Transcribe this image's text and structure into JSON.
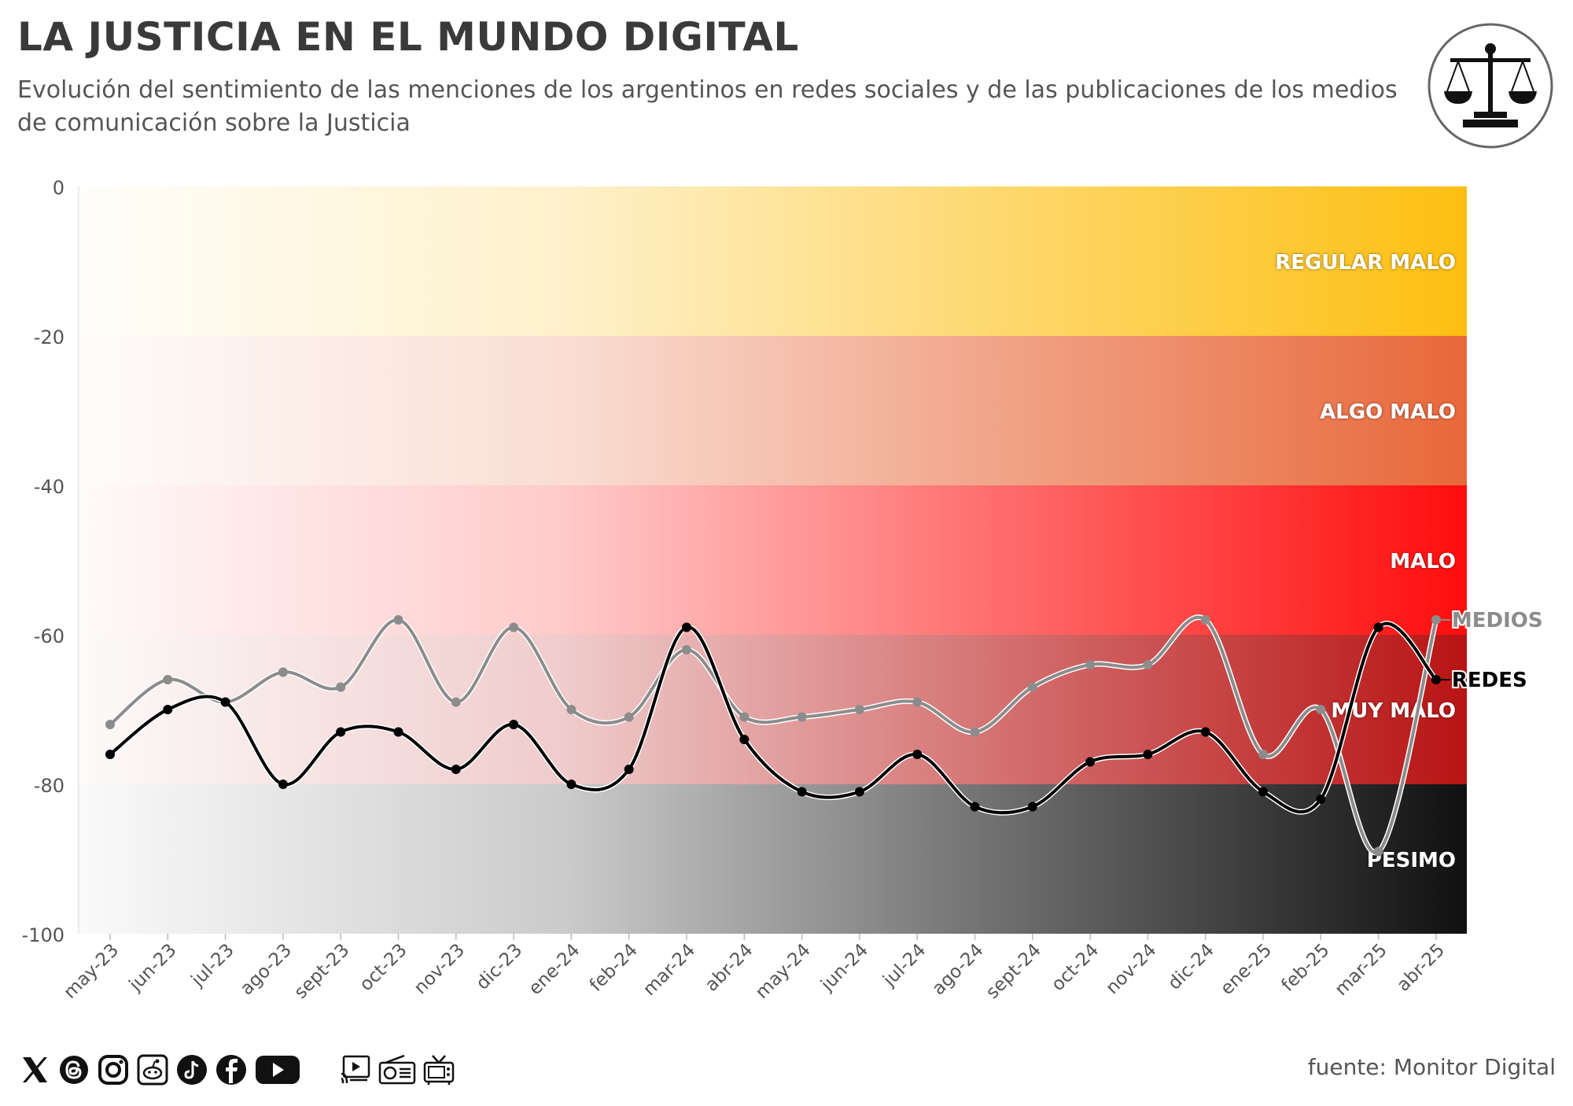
{
  "title": "LA JUSTICIA EN EL MUNDO DIGITAL",
  "subtitle": "Evolución del sentimiento de las menciones de los argentinos en redes sociales y de las publicaciones de los medios de comunicación sobre la Justicia",
  "source": "fuente: Monitor Digital",
  "icons": {
    "logo": "scales-of-justice-icon",
    "social": [
      "x-icon",
      "threads-icon",
      "instagram-icon",
      "reddit-icon",
      "tiktok-icon",
      "facebook-icon",
      "youtube-icon"
    ],
    "media": [
      "web-video-icon",
      "radio-icon",
      "tv-icon"
    ]
  },
  "chart_data": {
    "type": "line",
    "title": "LA JUSTICIA EN EL MUNDO DIGITAL",
    "xlabel": "",
    "ylabel": "",
    "ylim": [
      -100,
      0
    ],
    "yticks": [
      0,
      -20,
      -40,
      -60,
      -80,
      -100
    ],
    "categories": [
      "may-23",
      "jun-23",
      "jul-23",
      "ago-23",
      "sept-23",
      "oct-23",
      "nov-23",
      "dic-23",
      "ene-24",
      "feb-24",
      "mar-24",
      "abr-24",
      "may-24",
      "jun-24",
      "jul-24",
      "ago-24",
      "sept-24",
      "oct-24",
      "nov-24",
      "dic-24",
      "ene-25",
      "feb-25",
      "mar-25",
      "abr-25"
    ],
    "series": [
      {
        "name": "MEDIOS",
        "color": "#8c8c8c",
        "values": [
          -72,
          -66,
          -69,
          -65,
          -67,
          -58,
          -69,
          -59,
          -70,
          -71,
          -62,
          -71,
          -71,
          -70,
          -69,
          -73,
          -67,
          -64,
          -64,
          -58,
          -76,
          -70,
          -89,
          -58
        ]
      },
      {
        "name": "REDES",
        "color": "#000000",
        "values": [
          -76,
          -70,
          -69,
          -80,
          -73,
          -73,
          -78,
          -72,
          -80,
          -78,
          -59,
          -74,
          -81,
          -81,
          -76,
          -83,
          -83,
          -77,
          -76,
          -73,
          -81,
          -82,
          -59,
          -66
        ]
      }
    ],
    "bands": [
      {
        "label": "REGULAR MALO",
        "from": 0,
        "to": -20,
        "color": "#fdbf11"
      },
      {
        "label": "ALGO MALO",
        "from": -20,
        "to": -40,
        "color": "#e8683a"
      },
      {
        "label": "MALO",
        "from": -40,
        "to": -60,
        "color": "#ff0d0d"
      },
      {
        "label": "MUY MALO",
        "from": -60,
        "to": -80,
        "color": "#b81414"
      },
      {
        "label": "PESIMO",
        "from": -80,
        "to": -100,
        "color": "#111111"
      }
    ],
    "legend": "end-of-line labels"
  }
}
